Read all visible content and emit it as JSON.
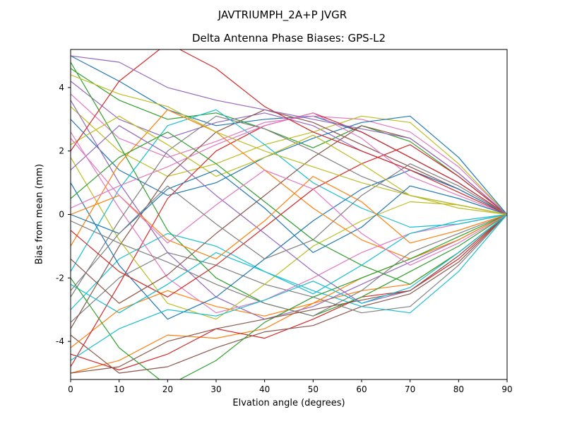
{
  "figure": {
    "title": "JAVTRIUMPH_2A+P JVGR",
    "subtitle": "Delta Antenna Phase Biases: GPS-L2"
  },
  "chart_data": {
    "type": "line",
    "title": "JAVTRIUMPH_2A+P JVGR",
    "subtitle": "Delta Antenna Phase Biases: GPS-L2",
    "xlabel": "Elvation angle (degrees)",
    "ylabel": "Bias from mean (mm)",
    "xlim": [
      0,
      90
    ],
    "ylim": [
      -5.2,
      5.2
    ],
    "xticks": [
      0,
      10,
      20,
      30,
      40,
      50,
      60,
      70,
      80,
      90
    ],
    "yticks": [
      -4,
      -2,
      0,
      2,
      4
    ],
    "grid": false,
    "legend": "none",
    "x": [
      0,
      10,
      20,
      30,
      40,
      50,
      60,
      70,
      80,
      90
    ],
    "series": [
      {
        "name": "s01",
        "color": "#1f77b4",
        "values": [
          5.0,
          4.2,
          3.3,
          2.8,
          3.0,
          3.1,
          2.6,
          1.8,
          1.0,
          0.0
        ]
      },
      {
        "name": "s02",
        "color": "#ff7f0e",
        "values": [
          -5.0,
          -4.6,
          -3.8,
          -3.9,
          -3.6,
          -2.8,
          -2.4,
          -2.2,
          -1.2,
          0.0
        ]
      },
      {
        "name": "s03",
        "color": "#2ca02c",
        "values": [
          4.6,
          3.6,
          3.0,
          3.2,
          2.7,
          2.1,
          2.8,
          2.3,
          1.2,
          0.0
        ]
      },
      {
        "name": "s04",
        "color": "#d62728",
        "values": [
          -4.4,
          -4.9,
          -4.4,
          -3.6,
          -3.9,
          -3.3,
          -2.6,
          -2.4,
          -1.4,
          0.0
        ]
      },
      {
        "name": "s05",
        "color": "#9467bd",
        "values": [
          4.2,
          3.0,
          2.4,
          2.9,
          3.2,
          2.8,
          2.0,
          1.4,
          0.8,
          0.0
        ]
      },
      {
        "name": "s06",
        "color": "#8c564b",
        "values": [
          -3.8,
          -5.0,
          -4.8,
          -4.2,
          -3.7,
          -3.5,
          -2.9,
          -2.5,
          -1.5,
          0.0
        ]
      },
      {
        "name": "s07",
        "color": "#e377c2",
        "values": [
          3.8,
          2.4,
          1.8,
          2.3,
          2.9,
          3.1,
          3.0,
          2.6,
          1.5,
          0.0
        ]
      },
      {
        "name": "s08",
        "color": "#7f7f7f",
        "values": [
          -3.4,
          -2.0,
          -1.2,
          -1.6,
          -2.2,
          -2.6,
          -3.1,
          -2.9,
          -1.6,
          0.0
        ]
      },
      {
        "name": "s09",
        "color": "#bcbd22",
        "values": [
          3.4,
          2.0,
          1.2,
          1.6,
          2.2,
          2.6,
          3.1,
          2.9,
          1.6,
          0.0
        ]
      },
      {
        "name": "s10",
        "color": "#17becf",
        "values": [
          -3.0,
          -1.4,
          -0.6,
          -1.0,
          -1.8,
          -2.4,
          -2.9,
          -3.1,
          -1.8,
          0.0
        ]
      },
      {
        "name": "s11",
        "color": "#1f77b4",
        "values": [
          3.0,
          1.4,
          0.6,
          1.0,
          1.8,
          2.4,
          2.9,
          3.1,
          1.8,
          0.0
        ]
      },
      {
        "name": "s12",
        "color": "#ff7f0e",
        "values": [
          -4.2,
          -3.0,
          -2.4,
          -2.9,
          -3.2,
          -2.8,
          -2.0,
          -1.4,
          -0.8,
          0.0
        ]
      },
      {
        "name": "s13",
        "color": "#2ca02c",
        "values": [
          4.8,
          2.2,
          -0.5,
          -2.0,
          -2.8,
          -3.2,
          -2.6,
          -1.8,
          -1.0,
          0.0
        ]
      },
      {
        "name": "s14",
        "color": "#d62728",
        "values": [
          -4.8,
          -2.2,
          0.5,
          2.0,
          2.8,
          3.2,
          2.6,
          1.8,
          1.0,
          0.0
        ]
      },
      {
        "name": "s15",
        "color": "#9467bd",
        "values": [
          3.6,
          1.0,
          -1.2,
          -2.6,
          -3.3,
          -2.9,
          -2.2,
          -1.5,
          -0.8,
          0.0
        ]
      },
      {
        "name": "s16",
        "color": "#8c564b",
        "values": [
          -3.6,
          -1.0,
          1.2,
          2.6,
          3.3,
          2.9,
          2.2,
          1.5,
          0.8,
          0.0
        ]
      },
      {
        "name": "s17",
        "color": "#e377c2",
        "values": [
          2.6,
          0.2,
          -2.0,
          -3.1,
          -2.7,
          -2.0,
          -1.2,
          -0.6,
          -0.3,
          0.0
        ]
      },
      {
        "name": "s18",
        "color": "#7f7f7f",
        "values": [
          -2.6,
          -0.2,
          2.0,
          3.1,
          2.7,
          2.0,
          1.2,
          0.6,
          0.3,
          0.0
        ]
      },
      {
        "name": "s19",
        "color": "#bcbd22",
        "values": [
          1.8,
          -0.8,
          -2.8,
          -3.3,
          -2.2,
          -1.0,
          -0.2,
          0.4,
          0.3,
          0.0
        ]
      },
      {
        "name": "s20",
        "color": "#17becf",
        "values": [
          -1.8,
          0.8,
          2.8,
          3.3,
          2.2,
          1.0,
          0.2,
          -0.4,
          -0.3,
          0.0
        ]
      },
      {
        "name": "s21",
        "color": "#1f77b4",
        "values": [
          1.0,
          -1.6,
          -3.3,
          -2.6,
          -1.4,
          -0.2,
          0.8,
          1.4,
          0.8,
          0.0
        ]
      },
      {
        "name": "s22",
        "color": "#ff7f0e",
        "values": [
          -1.0,
          1.6,
          3.3,
          2.6,
          1.4,
          0.2,
          -0.8,
          -1.4,
          -0.8,
          0.0
        ]
      },
      {
        "name": "s23",
        "color": "#2ca02c",
        "values": [
          0.5,
          1.8,
          2.6,
          1.6,
          0.4,
          -0.8,
          -1.6,
          -2.2,
          -1.2,
          0.0
        ]
      },
      {
        "name": "s24",
        "color": "#d62728",
        "values": [
          -0.5,
          -1.8,
          -2.6,
          -1.6,
          -0.4,
          0.8,
          1.6,
          2.2,
          1.2,
          0.0
        ]
      },
      {
        "name": "s25",
        "color": "#9467bd",
        "values": [
          1.4,
          2.8,
          1.9,
          0.6,
          -0.6,
          -1.8,
          -2.8,
          -2.4,
          -1.3,
          0.0
        ]
      },
      {
        "name": "s26",
        "color": "#8c564b",
        "values": [
          -1.4,
          -2.8,
          -1.9,
          -0.6,
          0.6,
          1.8,
          2.8,
          2.4,
          1.3,
          0.0
        ]
      },
      {
        "name": "s27",
        "color": "#e377c2",
        "values": [
          0.2,
          0.9,
          1.5,
          2.2,
          2.8,
          3.2,
          2.4,
          1.2,
          0.6,
          0.0
        ]
      },
      {
        "name": "s28",
        "color": "#7f7f7f",
        "values": [
          -0.2,
          -0.9,
          -1.5,
          -2.2,
          -2.8,
          -3.2,
          -2.4,
          -1.2,
          -0.6,
          0.0
        ]
      },
      {
        "name": "s29",
        "color": "#bcbd22",
        "values": [
          2.2,
          3.1,
          2.2,
          1.2,
          1.8,
          2.5,
          1.6,
          0.6,
          0.2,
          0.0
        ]
      },
      {
        "name": "s30",
        "color": "#17becf",
        "values": [
          -2.2,
          -3.1,
          -2.2,
          -1.2,
          -1.8,
          -2.5,
          -1.6,
          -0.6,
          -0.2,
          0.0
        ]
      },
      {
        "name": "s31",
        "color": "#1f77b4",
        "values": [
          0.0,
          -0.6,
          0.8,
          1.4,
          0.2,
          -1.2,
          -0.4,
          0.9,
          0.5,
          0.0
        ]
      },
      {
        "name": "s32",
        "color": "#ff7f0e",
        "values": [
          0.0,
          0.6,
          -0.8,
          -1.4,
          -0.2,
          1.2,
          0.4,
          -0.9,
          -0.5,
          0.0
        ]
      },
      {
        "name": "s33",
        "color": "#2ca02c",
        "values": [
          -2.0,
          -4.2,
          -5.4,
          -4.6,
          -3.4,
          -2.6,
          -2.0,
          -1.4,
          -0.7,
          0.0
        ]
      },
      {
        "name": "s34",
        "color": "#d62728",
        "values": [
          2.0,
          4.2,
          5.4,
          4.6,
          3.4,
          2.6,
          2.0,
          1.4,
          0.7,
          0.0
        ]
      },
      {
        "name": "s35",
        "color": "#9467bd",
        "values": [
          5.0,
          4.8,
          4.0,
          3.6,
          3.3,
          3.0,
          2.7,
          2.4,
          1.3,
          0.0
        ]
      },
      {
        "name": "s36",
        "color": "#8c564b",
        "values": [
          -5.0,
          -4.8,
          -4.0,
          -3.6,
          -3.3,
          -3.0,
          -2.7,
          -2.4,
          -1.3,
          0.0
        ]
      },
      {
        "name": "s37",
        "color": "#e377c2",
        "values": [
          2.4,
          0.6,
          -0.9,
          0.3,
          1.4,
          0.8,
          -0.6,
          -1.6,
          -0.9,
          0.0
        ]
      },
      {
        "name": "s38",
        "color": "#7f7f7f",
        "values": [
          -2.4,
          -0.6,
          0.9,
          -0.3,
          -1.4,
          -0.8,
          0.6,
          1.6,
          0.9,
          0.0
        ]
      },
      {
        "name": "s39",
        "color": "#bcbd22",
        "values": [
          4.4,
          3.8,
          3.4,
          2.6,
          2.0,
          1.5,
          1.0,
          0.6,
          0.3,
          0.0
        ]
      },
      {
        "name": "s40",
        "color": "#17becf",
        "values": [
          -4.6,
          -3.6,
          -3.0,
          -3.2,
          -2.7,
          -2.1,
          -2.8,
          -2.3,
          -1.2,
          0.0
        ]
      }
    ]
  }
}
